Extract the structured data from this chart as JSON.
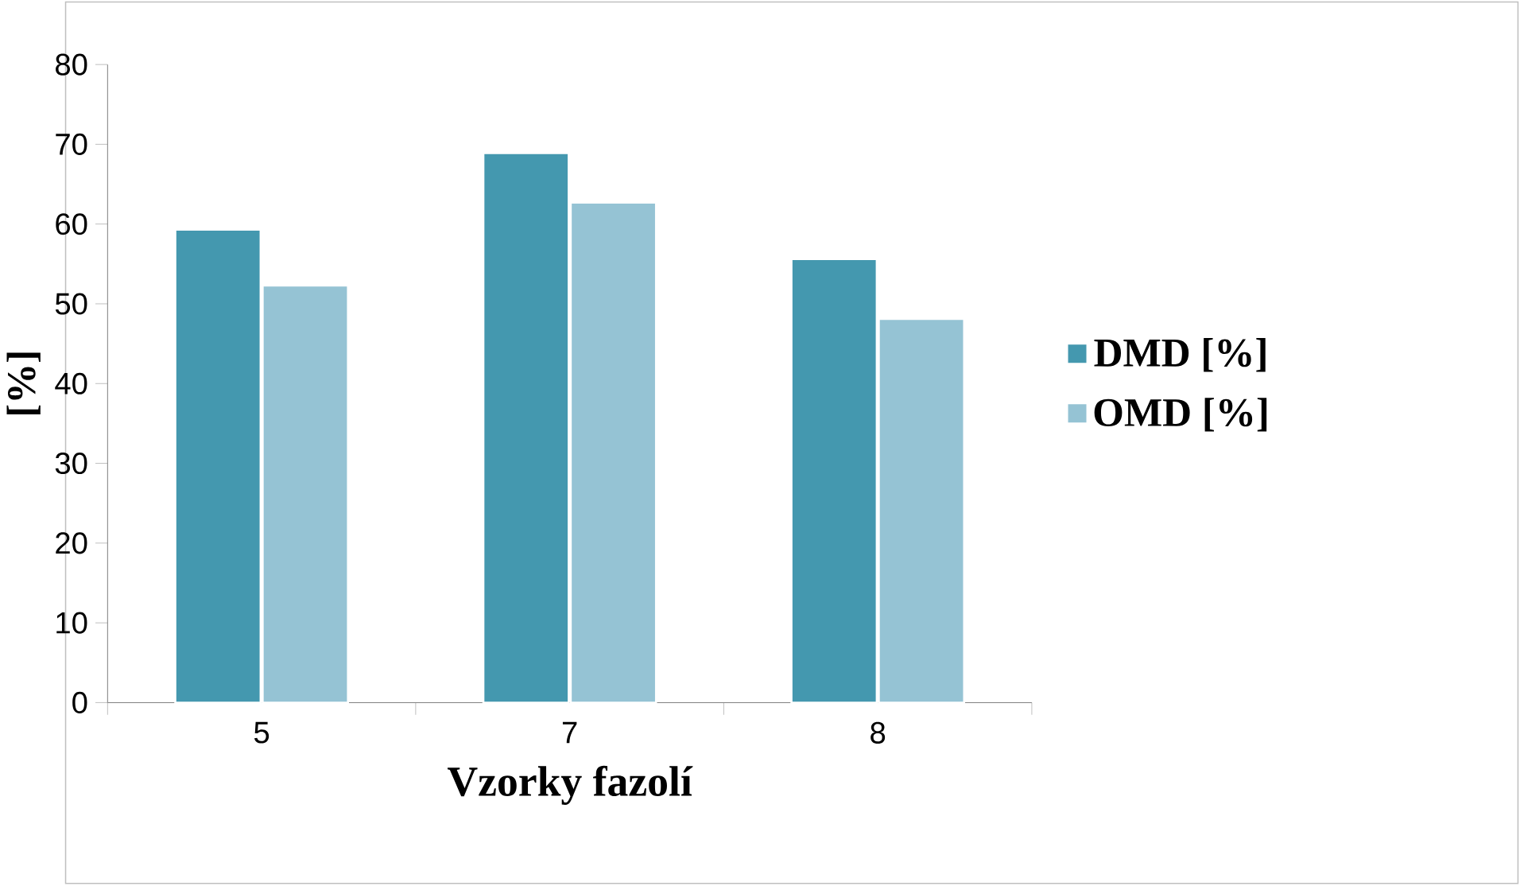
{
  "chart_data": {
    "type": "bar",
    "xlabel": "Vzorky fazolí",
    "ylabel": "[%]",
    "categories": [
      "5",
      "7",
      "8"
    ],
    "series": [
      {
        "name": "DMD [%]",
        "color": "#4498af",
        "values": [
          59.3,
          68.9,
          55.6
        ]
      },
      {
        "name": "OMD [%]",
        "color": "#95c3d4",
        "values": [
          52.3,
          62.7,
          48.1
        ]
      }
    ],
    "ylim": [
      0,
      80
    ],
    "yticks": [
      0,
      10,
      20,
      30,
      40,
      50,
      60,
      70,
      80
    ],
    "grid": false,
    "legend": "right"
  }
}
